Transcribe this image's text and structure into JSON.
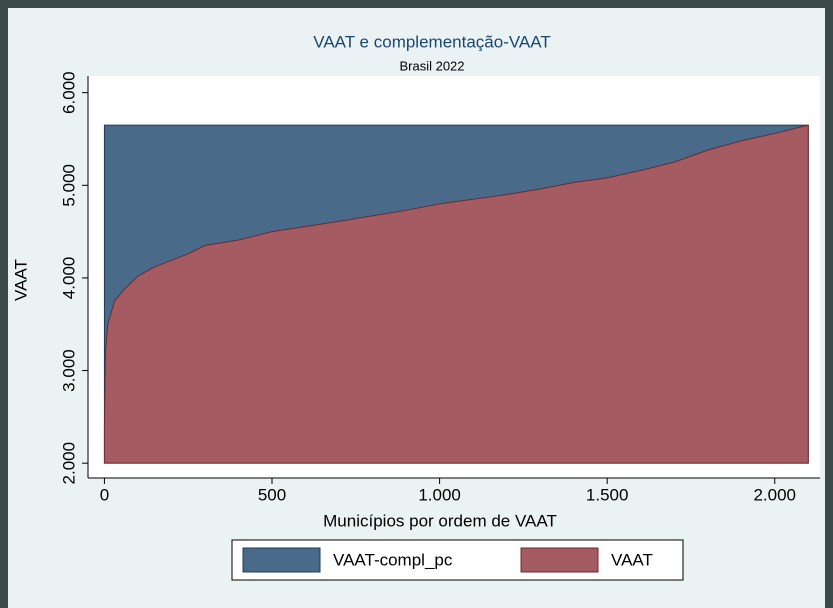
{
  "chart_data": {
    "type": "area",
    "title": "VAAT e complementação-VAAT",
    "subtitle": "Brasil 2022",
    "x_label": "Municípios por ordem de VAAT",
    "y_label": "VAAT",
    "x": [
      0,
      3,
      10,
      30,
      60,
      100,
      150,
      250,
      300,
      400,
      500,
      700,
      900,
      1000,
      1200,
      1300,
      1400,
      1500,
      1600,
      1700,
      1800,
      1900,
      2000,
      2100
    ],
    "series": [
      {
        "name": "VAAT-compl_pc",
        "color": "#4a6a8a",
        "edge": "#1f3b58",
        "values": [
          5650,
          5650,
          5650,
          5650,
          5650,
          5650,
          5650,
          5650,
          5650,
          5650,
          5650,
          5650,
          5650,
          5650,
          5650,
          5650,
          5650,
          5650,
          5650,
          5650,
          5650,
          5650,
          5650,
          5650
        ]
      },
      {
        "name": "VAAT",
        "color": "#a45b61",
        "edge": "#6e2a30",
        "values": [
          2400,
          3200,
          3500,
          3750,
          3880,
          4020,
          4120,
          4260,
          4350,
          4410,
          4500,
          4610,
          4730,
          4800,
          4900,
          4960,
          5030,
          5080,
          5160,
          5250,
          5380,
          5480,
          5560,
          5650
        ]
      }
    ],
    "xlim": [
      -49,
      2135
    ],
    "ylim": [
      1840,
      6180
    ],
    "xticks": [
      0,
      500,
      {
        "value": 1000,
        "label": "1.000"
      },
      {
        "value": 1500,
        "label": "1.500"
      },
      {
        "value": 2000,
        "label": "2.000"
      }
    ],
    "yticks": [
      {
        "value": 2000,
        "label": "2.000"
      },
      {
        "value": 3000,
        "label": "3.000"
      },
      {
        "value": 4000,
        "label": "4.000"
      },
      {
        "value": 5000,
        "label": "5.000"
      },
      {
        "value": 6000,
        "label": "6.000"
      }
    ],
    "grid": false,
    "legend": "bottom"
  }
}
